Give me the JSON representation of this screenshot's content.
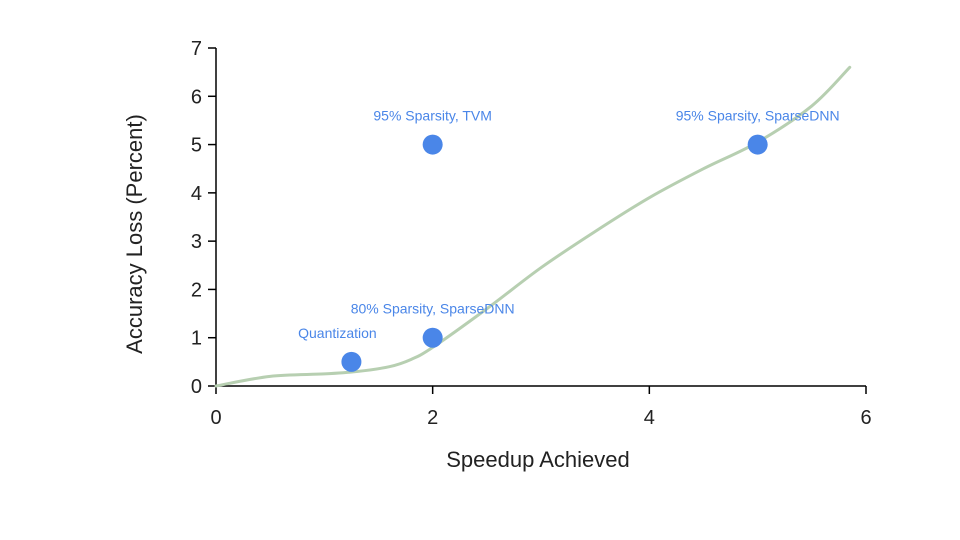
{
  "chart_data": {
    "type": "scatter",
    "title": "",
    "xlabel": "Speedup Achieved",
    "ylabel": "Accuracy Loss (Percent)",
    "xlim": [
      0,
      6
    ],
    "ylim": [
      0,
      7
    ],
    "xticks": [
      0,
      2,
      4,
      6
    ],
    "yticks": [
      0,
      1,
      2,
      3,
      4,
      5,
      6,
      7
    ],
    "grid": false,
    "legend": "none",
    "point_color": "#4a86e8",
    "label_color": "#4a86e8",
    "trend_color": "#b7cfb1",
    "points": [
      {
        "label": "Quantization",
        "x": 1.25,
        "y": 0.5
      },
      {
        "label": "80% Sparsity, SparseDNN",
        "x": 2.0,
        "y": 1.0
      },
      {
        "label": "95% Sparsity, TVM",
        "x": 2.0,
        "y": 5.0
      },
      {
        "label": "95% Sparsity, SparseDNN",
        "x": 5.0,
        "y": 5.0
      }
    ],
    "trend_line": {
      "x": [
        0,
        0.5,
        1.0,
        1.3,
        1.6,
        1.8,
        2.0,
        2.5,
        3.0,
        3.5,
        4.0,
        4.5,
        5.0,
        5.5,
        5.85
      ],
      "y": [
        0,
        0.2,
        0.25,
        0.3,
        0.4,
        0.55,
        0.8,
        1.6,
        2.45,
        3.2,
        3.9,
        4.5,
        5.05,
        5.8,
        6.6
      ]
    }
  }
}
